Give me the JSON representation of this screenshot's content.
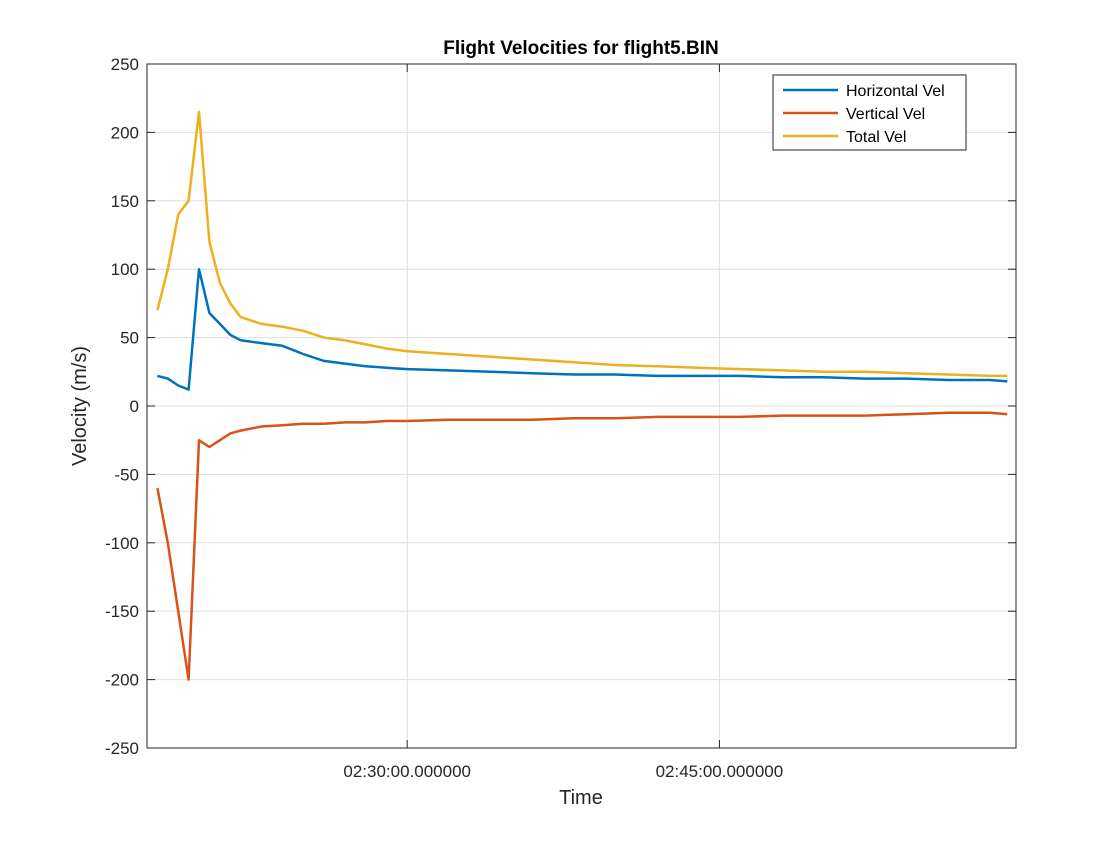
{
  "chart_data": {
    "type": "line",
    "title": "Flight Velocities for flight5.BIN",
    "xlabel": "Time",
    "ylabel": "Velocity (m/s)",
    "ylim": [
      -250,
      250
    ],
    "xlim": [
      "02:17:30",
      "02:59:15"
    ],
    "x_tick_values": [
      "02:30:00",
      "02:45:00"
    ],
    "x_tick_labels": [
      "02:30:00.000000",
      "02:45:00.000000"
    ],
    "y_ticks": [
      -250,
      -200,
      -150,
      -100,
      -50,
      0,
      50,
      100,
      150,
      200,
      250
    ],
    "grid": true,
    "legend_position": "top-right",
    "x": [
      "02:18:00",
      "02:18:30",
      "02:19:00",
      "02:19:30",
      "02:20:00",
      "02:20:30",
      "02:21:00",
      "02:21:30",
      "02:22:00",
      "02:23:00",
      "02:24:00",
      "02:25:00",
      "02:26:00",
      "02:27:00",
      "02:28:00",
      "02:29:00",
      "02:30:00",
      "02:32:00",
      "02:34:00",
      "02:36:00",
      "02:38:00",
      "02:40:00",
      "02:42:00",
      "02:44:00",
      "02:46:00",
      "02:48:00",
      "02:50:00",
      "02:52:00",
      "02:54:00",
      "02:56:00",
      "02:58:00",
      "02:58:50"
    ],
    "series": [
      {
        "name": "Horizontal Vel",
        "color": "#0072BD",
        "values": [
          22,
          20,
          15,
          12,
          100,
          68,
          60,
          52,
          48,
          46,
          44,
          38,
          33,
          31,
          29,
          28,
          27,
          26,
          25,
          24,
          23,
          23,
          22,
          22,
          22,
          21,
          21,
          20,
          20,
          19,
          19,
          18
        ]
      },
      {
        "name": "Vertical Vel",
        "color": "#D95319",
        "values": [
          -60,
          -100,
          -150,
          -200,
          -25,
          -30,
          -25,
          -20,
          -18,
          -15,
          -14,
          -13,
          -13,
          -12,
          -12,
          -11,
          -11,
          -10,
          -10,
          -10,
          -9,
          -9,
          -8,
          -8,
          -8,
          -7,
          -7,
          -7,
          -6,
          -5,
          -5,
          -6
        ]
      },
      {
        "name": "Total Vel",
        "color": "#EDB120",
        "values": [
          70,
          100,
          140,
          150,
          215,
          120,
          90,
          75,
          65,
          60,
          58,
          55,
          50,
          48,
          45,
          42,
          40,
          38,
          36,
          34,
          32,
          30,
          29,
          28,
          27,
          26,
          25,
          25,
          24,
          23,
          22,
          22
        ]
      }
    ]
  }
}
